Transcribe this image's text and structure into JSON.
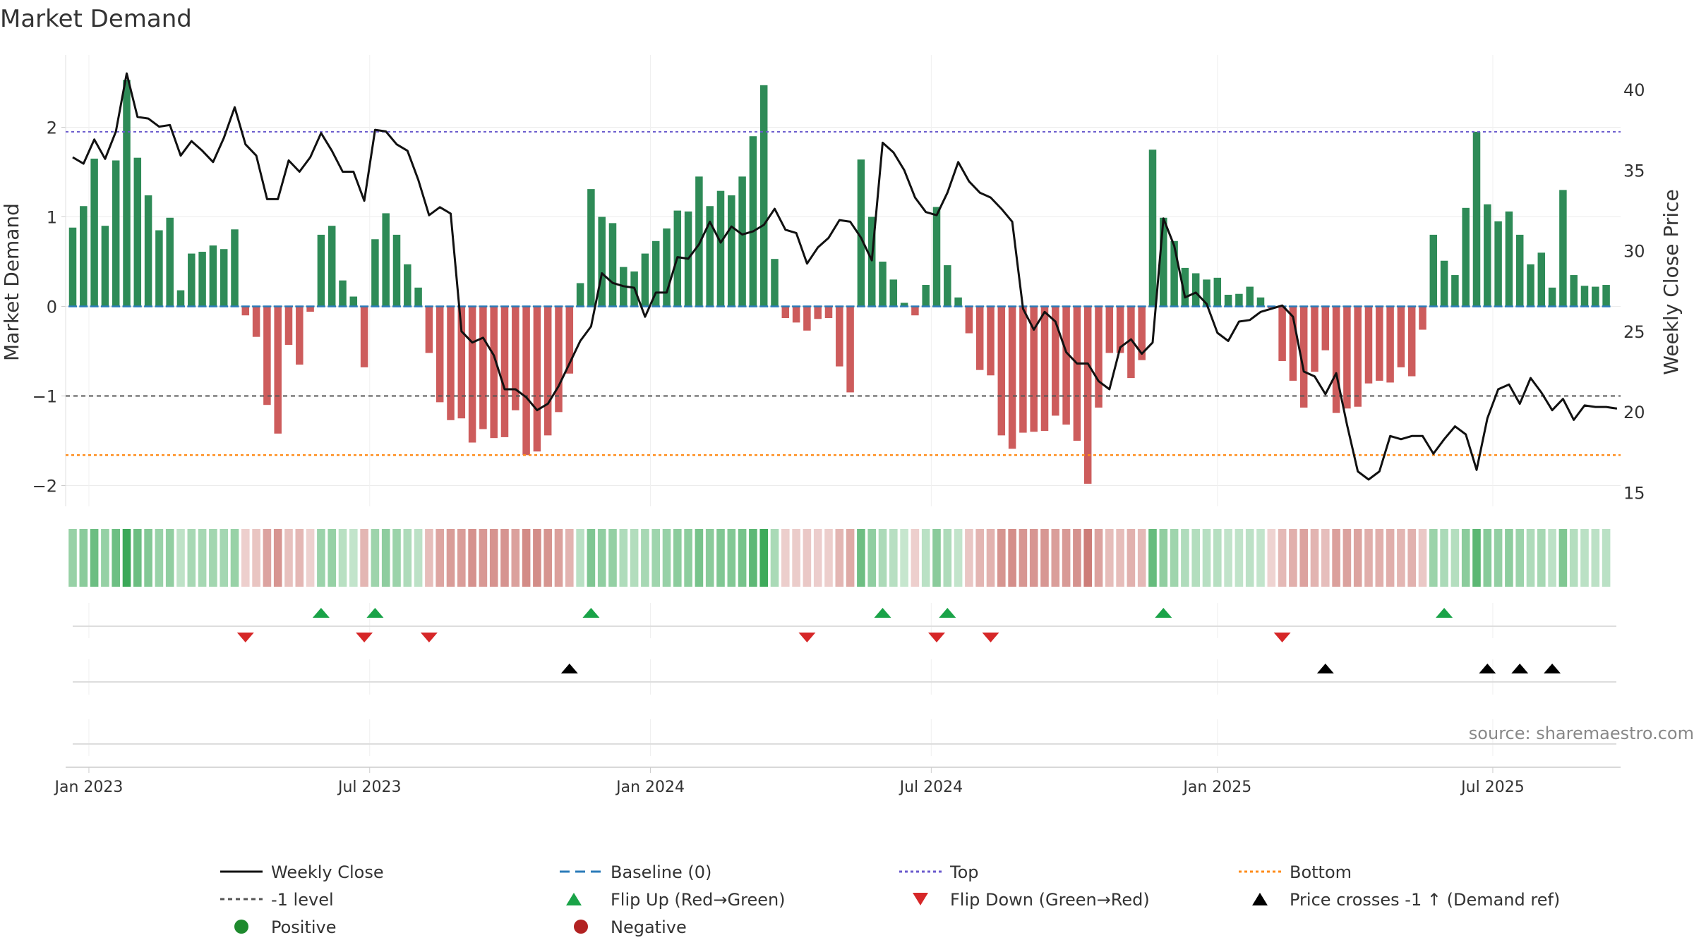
{
  "chart_data": {
    "type": "bar",
    "title": "Market Demand",
    "ylabel": "Market Demand",
    "y2label": "Weekly Close Price",
    "ylim": [
      -2.2,
      2.55
    ],
    "y2lim": [
      14.3,
      40.2
    ],
    "yticks": [
      "2",
      "1",
      "0",
      "−1",
      "−2"
    ],
    "ytick_values": [
      2,
      1,
      0,
      -1,
      -2
    ],
    "y2ticks": [
      "40",
      "35",
      "30",
      "25",
      "20",
      "15"
    ],
    "y2tick_values": [
      40,
      35,
      30,
      25,
      20,
      15
    ],
    "xticks": [
      "Jan 2023",
      "Jul 2023",
      "Jan 2024",
      "Jul 2024",
      "Jan 2025",
      "Jul 2025"
    ],
    "xtick_weeks": [
      1.5,
      27.5,
      53.5,
      79.5,
      106,
      131.5
    ],
    "reference_lines": {
      "top": 1.95,
      "minus_one": -1.0,
      "bottom": -1.66,
      "baseline": 0
    },
    "demand": [
      0.88,
      1.12,
      1.65,
      0.9,
      1.63,
      2.53,
      1.66,
      1.24,
      0.85,
      0.99,
      0.18,
      0.59,
      0.61,
      0.68,
      0.64,
      0.86,
      -0.1,
      -0.34,
      -1.1,
      -1.42,
      -0.43,
      -0.65,
      -0.06,
      0.8,
      0.9,
      0.29,
      0.11,
      -0.68,
      0.75,
      1.04,
      0.8,
      0.47,
      0.21,
      -0.52,
      -1.07,
      -1.27,
      -1.25,
      -1.52,
      -1.37,
      -1.47,
      -1.46,
      -1.16,
      -1.66,
      -1.62,
      -1.44,
      -1.18,
      -0.75,
      0.26,
      1.31,
      1.0,
      0.93,
      0.44,
      0.39,
      0.59,
      0.73,
      0.87,
      1.07,
      1.06,
      1.45,
      1.12,
      1.29,
      1.24,
      1.45,
      1.9,
      2.47,
      0.53,
      -0.13,
      -0.18,
      -0.27,
      -0.14,
      -0.13,
      -0.67,
      -0.96,
      1.64,
      1.0,
      0.5,
      0.3,
      0.04,
      -0.1,
      0.24,
      1.11,
      0.46,
      0.1,
      -0.3,
      -0.71,
      -0.77,
      -1.44,
      -1.59,
      -1.41,
      -1.4,
      -1.39,
      -1.22,
      -1.32,
      -1.5,
      -1.98,
      -1.13,
      -0.52,
      -0.52,
      -0.8,
      -0.6,
      1.75,
      0.99,
      0.73,
      0.43,
      0.37,
      0.3,
      0.32,
      0.13,
      0.14,
      0.22,
      0.1,
      -0.02,
      -0.61,
      -0.83,
      -1.13,
      -0.73,
      -0.49,
      -1.19,
      -1.14,
      -1.12,
      -0.86,
      -0.83,
      -0.85,
      -0.68,
      -0.78,
      -0.26,
      0.8,
      0.51,
      0.35,
      1.1,
      1.95,
      1.14,
      0.95,
      1.06,
      0.8,
      0.47,
      0.6,
      0.21,
      1.3,
      0.35,
      0.23,
      0.22,
      0.24
    ],
    "price": [
      35.8,
      35.4,
      36.9,
      35.7,
      37.4,
      41.0,
      38.3,
      38.2,
      37.7,
      37.8,
      35.9,
      36.8,
      36.2,
      35.5,
      37.0,
      38.9,
      36.6,
      35.9,
      33.2,
      33.2,
      35.6,
      34.9,
      35.8,
      37.3,
      36.2,
      34.9,
      34.9,
      33.1,
      37.5,
      37.4,
      36.6,
      36.2,
      34.4,
      32.2,
      32.7,
      32.3,
      25.0,
      24.3,
      24.6,
      23.5,
      21.4,
      21.4,
      20.9,
      20.1,
      20.5,
      21.6,
      23.0,
      24.4,
      25.3,
      28.6,
      28.0,
      27.8,
      27.7,
      25.9,
      27.4,
      27.4,
      29.6,
      29.5,
      30.4,
      31.8,
      30.5,
      31.5,
      31.0,
      31.2,
      31.6,
      32.6,
      31.3,
      31.1,
      29.2,
      30.2,
      30.8,
      31.9,
      31.8,
      30.8,
      29.4,
      36.7,
      36.1,
      35.0,
      33.3,
      32.4,
      32.2,
      33.6,
      35.5,
      34.3,
      33.6,
      33.3,
      32.6,
      31.8,
      26.4,
      25.1,
      26.2,
      25.6,
      23.7,
      23.0,
      23.0,
      21.9,
      21.4,
      24.0,
      24.5,
      23.6,
      24.3,
      32.0,
      30.3,
      27.1,
      27.4,
      26.7,
      24.9,
      24.4,
      25.6,
      25.7,
      26.2,
      26.4,
      26.6,
      25.9,
      22.5,
      22.2,
      21.1,
      22.4,
      19.2,
      16.3,
      15.8,
      16.3,
      18.5,
      18.3,
      18.5,
      18.5,
      17.4,
      18.3,
      19.1,
      18.6,
      16.4,
      19.6,
      21.4,
      21.7,
      20.5,
      22.1,
      21.2,
      20.1,
      20.8,
      19.5,
      20.4,
      20.3,
      20.3,
      20.2
    ],
    "flip_up_weeks": [
      23,
      28,
      48,
      75,
      81,
      101,
      127
    ],
    "flip_down_weeks": [
      16,
      27,
      33,
      68,
      80,
      85,
      112
    ],
    "price_cross_weeks": [
      46,
      116,
      131,
      134,
      137
    ],
    "legend": {
      "weekly_close": "Weekly Close",
      "baseline": "Baseline (0)",
      "top": "Top",
      "bottom": "Bottom",
      "minus_one": "-1 level",
      "flip_up": "Flip Up (Red→Green)",
      "flip_down": "Flip Down (Green→Red)",
      "price_cross": "Price crosses -1 ↑ (Demand ref)",
      "positive": "Positive",
      "negative": "Negative"
    },
    "source": "source: sharemaestro.com"
  },
  "colors": {
    "positive": "#2e8b57",
    "negative": "#cd5c5c",
    "price_line": "#111111",
    "baseline": "#2b7bb9",
    "top": "#6a5acd",
    "minus_one": "#555555",
    "bottom": "#ff8c1a",
    "flip_up": "#1aa348",
    "flip_down": "#d62728",
    "cross": "#000000",
    "legend_positive": "#1e8a2e",
    "legend_negative": "#b22222"
  }
}
